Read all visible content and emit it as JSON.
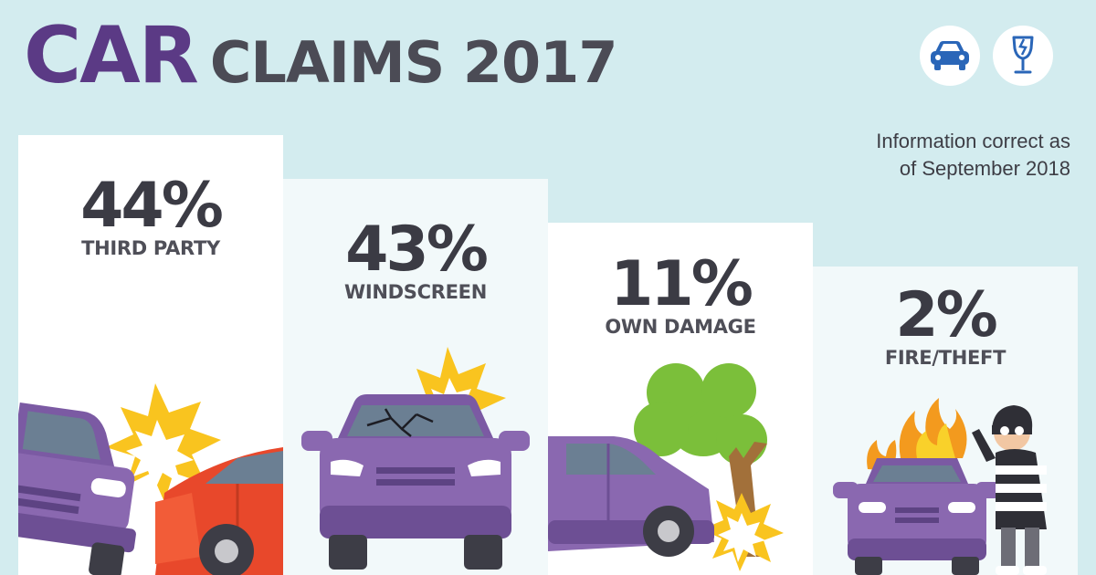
{
  "title": {
    "main": "CAR",
    "rest": "CLAIMS 2017"
  },
  "info": {
    "line1": "Information correct as",
    "line2": "of September 2018"
  },
  "icons": [
    "car-icon",
    "broken-glass-icon"
  ],
  "colors": {
    "background": "#d3ecef",
    "purple": "#5b3a85",
    "car_purple": "#8a68b0",
    "icon_blue": "#2a66b8",
    "text_dark": "#3b3b44"
  },
  "chart_data": {
    "type": "bar",
    "title": "CAR CLAIMS 2017",
    "categories": [
      "THIRD PARTY",
      "WINDSCREEN",
      "OWN DAMAGE",
      "FIRE/THEFT"
    ],
    "values": [
      44,
      43,
      11,
      2
    ],
    "value_labels": [
      "44%",
      "43%",
      "11%",
      "2%"
    ],
    "unit": "%"
  }
}
